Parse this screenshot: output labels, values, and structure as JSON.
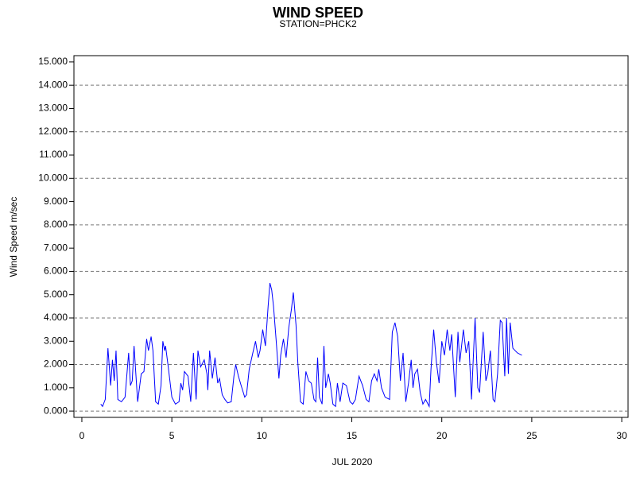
{
  "chart_data": {
    "type": "line",
    "title": "WIND SPEED",
    "subtitle": "STATION=PHCK2",
    "x_label": "JUL 2020",
    "y_label": "Wind Speed m/sec",
    "xlim": [
      -0.44,
      30.35
    ],
    "xticks": [
      0,
      5,
      10,
      15,
      20,
      25,
      30
    ],
    "ylim": [
      -0.27,
      15.27
    ],
    "yticks": [
      {
        "value": 0,
        "label": "0.000"
      },
      {
        "value": 1,
        "label": "1.000"
      },
      {
        "value": 2,
        "label": "2.000"
      },
      {
        "value": 3,
        "label": "3.000"
      },
      {
        "value": 4,
        "label": "4.000"
      },
      {
        "value": 5,
        "label": "5.000"
      },
      {
        "value": 6,
        "label": "6.000"
      },
      {
        "value": 7,
        "label": "7.000"
      },
      {
        "value": 8,
        "label": "8.000"
      },
      {
        "value": 9,
        "label": "9.000"
      },
      {
        "value": 10,
        "label": "10.000"
      },
      {
        "value": 11,
        "label": "11.000"
      },
      {
        "value": 12,
        "label": "12.000"
      },
      {
        "value": 13,
        "label": "13.000"
      },
      {
        "value": 14,
        "label": "14.000"
      },
      {
        "value": 15,
        "label": "15.000"
      }
    ],
    "reference_lines": [
      0,
      2,
      4,
      6,
      8,
      10,
      12,
      14
    ],
    "color": "#0000ff",
    "x": [
      1.05,
      1.15,
      1.25,
      1.3,
      1.45,
      1.6,
      1.7,
      1.8,
      1.9,
      2.0,
      2.2,
      2.4,
      2.6,
      2.7,
      2.8,
      2.9,
      3.1,
      3.3,
      3.45,
      3.6,
      3.7,
      3.85,
      3.95,
      4.1,
      4.25,
      4.4,
      4.5,
      4.6,
      4.65,
      4.8,
      5.0,
      5.2,
      5.4,
      5.5,
      5.6,
      5.7,
      5.9,
      6.05,
      6.2,
      6.35,
      6.45,
      6.6,
      6.8,
      6.95,
      7.0,
      7.1,
      7.25,
      7.4,
      7.55,
      7.65,
      7.8,
      7.95,
      8.1,
      8.3,
      8.45,
      8.55,
      8.7,
      8.85,
      9.05,
      9.15,
      9.3,
      9.5,
      9.65,
      9.8,
      9.9,
      10.05,
      10.2,
      10.35,
      10.45,
      10.55,
      10.65,
      10.8,
      10.95,
      11.05,
      11.2,
      11.35,
      11.5,
      11.65,
      11.75,
      11.9,
      12.0,
      12.15,
      12.3,
      12.45,
      12.6,
      12.75,
      12.9,
      13.0,
      13.1,
      13.2,
      13.35,
      13.45,
      13.55,
      13.7,
      13.8,
      13.95,
      14.1,
      14.2,
      14.35,
      14.5,
      14.7,
      14.9,
      15.05,
      15.2,
      15.4,
      15.6,
      15.8,
      15.95,
      16.1,
      16.25,
      16.4,
      16.5,
      16.65,
      16.85,
      17.1,
      17.25,
      17.4,
      17.55,
      17.7,
      17.85,
      18.0,
      18.15,
      18.3,
      18.4,
      18.5,
      18.65,
      18.8,
      18.95,
      19.1,
      19.3,
      19.4,
      19.55,
      19.7,
      19.85,
      20.0,
      20.15,
      20.3,
      20.45,
      20.55,
      20.75,
      20.9,
      21.0,
      21.2,
      21.35,
      21.5,
      21.65,
      21.85,
      22.0,
      22.1,
      22.3,
      22.45,
      22.55,
      22.7,
      22.85,
      22.95,
      23.1,
      23.25,
      23.35,
      23.5,
      23.6,
      23.7,
      23.8,
      23.95,
      24.2,
      24.45
    ],
    "values": [
      0.3,
      0.2,
      0.4,
      0.5,
      2.7,
      1.1,
      2.2,
      1.3,
      2.6,
      0.5,
      0.4,
      0.6,
      2.5,
      1.1,
      1.3,
      2.8,
      0.4,
      1.6,
      1.7,
      3.1,
      2.6,
      3.2,
      2.6,
      0.4,
      0.3,
      1.1,
      3.0,
      2.6,
      2.8,
      1.9,
      0.6,
      0.3,
      0.4,
      1.2,
      0.9,
      1.7,
      1.5,
      0.4,
      2.5,
      0.5,
      2.6,
      1.9,
      2.2,
      1.6,
      0.9,
      2.6,
      1.4,
      2.3,
      1.2,
      1.4,
      0.7,
      0.5,
      0.35,
      0.4,
      1.5,
      2.0,
      1.5,
      1.1,
      0.6,
      0.7,
      1.8,
      2.5,
      3.0,
      2.3,
      2.6,
      3.5,
      2.8,
      4.5,
      5.5,
      5.2,
      4.5,
      3.0,
      1.4,
      2.4,
      3.1,
      2.3,
      3.6,
      4.4,
      5.1,
      3.7,
      2.1,
      0.4,
      0.3,
      1.7,
      1.3,
      1.2,
      0.5,
      0.4,
      2.3,
      0.6,
      0.3,
      2.8,
      1.0,
      1.6,
      1.2,
      0.3,
      0.2,
      1.2,
      0.4,
      1.2,
      1.1,
      0.4,
      0.3,
      0.5,
      1.5,
      1.1,
      0.5,
      0.4,
      1.3,
      1.6,
      1.3,
      1.8,
      1.0,
      0.6,
      0.5,
      3.4,
      3.8,
      3.2,
      1.3,
      2.5,
      0.4,
      1.2,
      2.2,
      1.0,
      1.6,
      1.8,
      0.8,
      0.3,
      0.5,
      0.2,
      1.8,
      3.5,
      2.1,
      1.2,
      3.0,
      2.4,
      3.5,
      2.6,
      3.3,
      0.6,
      3.4,
      2.1,
      3.5,
      2.5,
      3.0,
      0.5,
      4.0,
      1.0,
      0.8,
      3.4,
      1.3,
      1.6,
      2.6,
      0.5,
      0.4,
      1.6,
      3.9,
      3.8,
      1.5,
      4.0,
      1.6,
      3.8,
      2.7,
      2.5,
      2.4
    ]
  }
}
